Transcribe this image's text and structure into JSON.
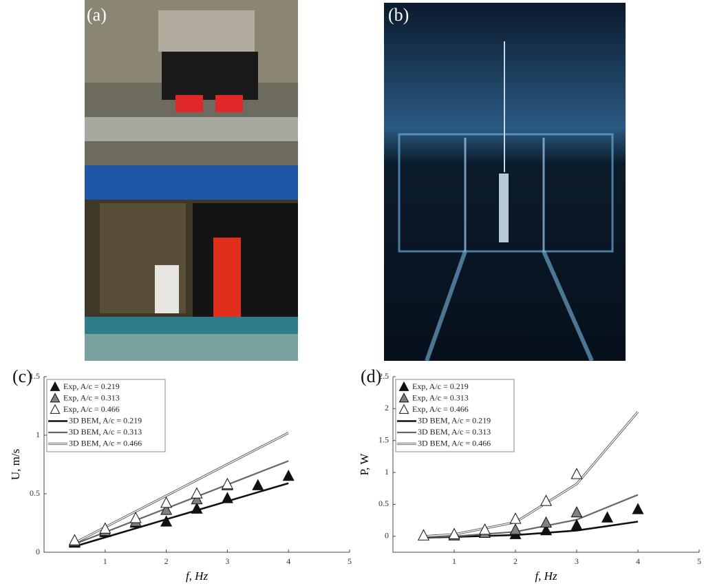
{
  "panels": [
    "(a)",
    "(b)"
  ],
  "chart_data": [
    {
      "type": "line",
      "label": "(c)",
      "x_label": "f, Hz",
      "y_label": "U, m/s",
      "xlim": [
        0,
        5
      ],
      "ylim": [
        0,
        1.5
      ],
      "xticks": [
        1,
        2,
        3,
        4,
        5
      ],
      "yticks": [
        0,
        0.5,
        1,
        1.5
      ],
      "legend": "top-left",
      "series": [
        {
          "name": "Exp, A/c = 0.219",
          "mode": "markers",
          "color": "#111111",
          "x": [
            0.5,
            1,
            1.5,
            2,
            2.5,
            3,
            3.5,
            4
          ],
          "values": [
            0.08,
            0.17,
            0.25,
            0.26,
            0.37,
            0.46,
            0.57,
            0.65
          ]
        },
        {
          "name": "Exp, A/c = 0.313",
          "mode": "markers",
          "color": "#808080",
          "x": [
            0.5,
            1,
            1.5,
            2,
            2.5,
            3
          ],
          "values": [
            0.09,
            0.18,
            0.26,
            0.36,
            0.45,
            0.57
          ]
        },
        {
          "name": "Exp, A/c = 0.466",
          "mode": "markers",
          "color": "#ffffff",
          "x": [
            0.5,
            1,
            1.5,
            2,
            2.5,
            3
          ],
          "values": [
            0.1,
            0.2,
            0.29,
            0.42,
            0.5,
            0.58
          ]
        },
        {
          "name": "3D BEM, A/c = 0.219",
          "mode": "line",
          "color": "#111111",
          "x": [
            0.5,
            4
          ],
          "values": [
            0.05,
            0.59
          ]
        },
        {
          "name": "3D BEM, A/c = 0.313",
          "mode": "line",
          "color": "#666666",
          "x": [
            0.5,
            4
          ],
          "values": [
            0.07,
            0.78
          ]
        },
        {
          "name": "3D BEM, A/c = 0.466",
          "mode": "line",
          "color": "#ffffff",
          "x": [
            0.5,
            4
          ],
          "values": [
            0.08,
            1.02
          ]
        }
      ]
    },
    {
      "type": "line",
      "label": "(d)",
      "x_label": "f, Hz",
      "y_label": "P, W",
      "xlim": [
        0,
        5
      ],
      "ylim": [
        -0.25,
        2.5
      ],
      "xticks": [
        1,
        2,
        3,
        4,
        5
      ],
      "yticks": [
        0,
        0.5,
        1,
        1.5,
        2,
        2.5
      ],
      "legend": "top-left",
      "series": [
        {
          "name": "Exp, A/c = 0.219",
          "mode": "markers",
          "color": "#111111",
          "x": [
            2,
            2.5,
            3,
            3.5,
            4
          ],
          "values": [
            0.03,
            0.09,
            0.17,
            0.29,
            0.42
          ]
        },
        {
          "name": "Exp, A/c = 0.313",
          "mode": "markers",
          "color": "#808080",
          "x": [
            1,
            1.5,
            2,
            2.5,
            3
          ],
          "values": [
            0.01,
            0.05,
            0.1,
            0.21,
            0.37
          ]
        },
        {
          "name": "Exp, A/c = 0.466",
          "mode": "markers",
          "color": "#ffffff",
          "x": [
            0.5,
            1,
            1.5,
            2,
            2.5,
            3
          ],
          "values": [
            0.01,
            0.03,
            0.1,
            0.27,
            0.55,
            0.97
          ]
        },
        {
          "name": "3D BEM, A/c = 0.219",
          "mode": "line",
          "color": "#111111",
          "x": [
            0.5,
            1,
            2,
            3,
            4
          ],
          "values": [
            -0.02,
            -0.01,
            0.02,
            0.09,
            0.23
          ]
        },
        {
          "name": "3D BEM, A/c = 0.313",
          "mode": "line",
          "color": "#666666",
          "x": [
            0.5,
            1,
            2,
            3,
            4
          ],
          "values": [
            -0.01,
            0,
            0.07,
            0.26,
            0.65
          ]
        },
        {
          "name": "3D BEM, A/c = 0.466",
          "mode": "line",
          "color": "#ffffff",
          "x": [
            0.5,
            1,
            2,
            3,
            4
          ],
          "values": [
            0,
            0.03,
            0.22,
            0.82,
            1.95
          ]
        }
      ]
    }
  ]
}
